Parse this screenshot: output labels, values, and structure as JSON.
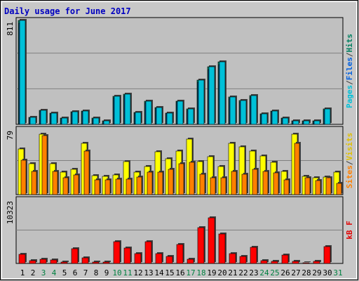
{
  "title": "Daily usage for June 2017",
  "legend": {
    "panel1": [
      {
        "text": "Pages",
        "color": "#00c0d8"
      },
      {
        "text": "/",
        "color": "#404040"
      },
      {
        "text": "Files",
        "color": "#0060e0"
      },
      {
        "text": "/",
        "color": "#404040"
      },
      {
        "text": "Hits",
        "color": "#008060"
      }
    ],
    "panel2": [
      {
        "text": "Sites",
        "color": "#ff8000"
      },
      {
        "text": "/",
        "color": "#404040"
      },
      {
        "text": "Visits",
        "color": "#e0c000"
      }
    ],
    "panel3": [
      {
        "text": "kB F",
        "color": "#e00000"
      }
    ]
  },
  "colors": {
    "title": "#0000c0",
    "frame_bg": "#c8c8c8",
    "plot_bg": "#c0c0c0",
    "grid": "#808080",
    "hits": "#008060",
    "files": "#0060e0",
    "pages": "#00c0d8",
    "visits": "#ffff00",
    "sites": "#ff8000",
    "kb": "#ff0000",
    "day_normal": "#000000",
    "day_weekend": "#008040"
  },
  "chart_data": [
    {
      "type": "bar",
      "title": "Daily usage for June 2017",
      "ylabel_max": "811",
      "ylim": [
        0,
        811
      ],
      "categories": [
        "1",
        "2",
        "3",
        "4",
        "5",
        "6",
        "7",
        "8",
        "9",
        "10",
        "11",
        "12",
        "13",
        "14",
        "15",
        "16",
        "17",
        "18",
        "19",
        "20",
        "21",
        "22",
        "23",
        "24",
        "25",
        "26",
        "27",
        "28",
        "29",
        "30",
        "31"
      ],
      "series": [
        {
          "name": "Hits",
          "values": [
            811,
            54,
            110,
            88,
            51,
            101,
            106,
            48,
            26,
            220,
            235,
            95,
            180,
            130,
            90,
            182,
            118,
            346,
            448,
            485,
            215,
            185,
            225,
            80,
            105,
            50,
            30,
            25,
            25,
            118,
            0
          ]
        },
        {
          "name": "Files",
          "values": [
            790,
            48,
            104,
            84,
            46,
            95,
            98,
            40,
            22,
            210,
            222,
            90,
            172,
            124,
            86,
            176,
            112,
            330,
            430,
            466,
            205,
            178,
            216,
            74,
            100,
            46,
            26,
            22,
            22,
            110,
            0
          ]
        },
        {
          "name": "Pages",
          "values": [
            811,
            54,
            110,
            88,
            51,
            101,
            106,
            48,
            26,
            220,
            235,
            95,
            180,
            130,
            90,
            182,
            118,
            346,
            448,
            485,
            215,
            185,
            225,
            80,
            105,
            50,
            30,
            25,
            25,
            118,
            0
          ]
        }
      ]
    },
    {
      "type": "bar",
      "ylabel_max": "79",
      "ylim": [
        0,
        79
      ],
      "categories": [
        "1",
        "2",
        "3",
        "4",
        "5",
        "6",
        "7",
        "8",
        "9",
        "10",
        "11",
        "12",
        "13",
        "14",
        "15",
        "16",
        "17",
        "18",
        "19",
        "20",
        "21",
        "22",
        "23",
        "24",
        "25",
        "26",
        "27",
        "28",
        "29",
        "30",
        "31"
      ],
      "series": [
        {
          "name": "Visits",
          "values": [
            55,
            37,
            73,
            37,
            27,
            31,
            62,
            23,
            22,
            24,
            40,
            27,
            34,
            52,
            43,
            53,
            67,
            40,
            46,
            34,
            62,
            58,
            53,
            47,
            39,
            28,
            73,
            22,
            20,
            21,
            27
          ]
        },
        {
          "name": "Sites",
          "values": [
            42,
            28,
            71,
            28,
            20,
            24,
            53,
            18,
            18,
            19,
            19,
            21,
            27,
            27,
            31,
            37,
            39,
            25,
            20,
            20,
            28,
            25,
            31,
            28,
            26,
            18,
            62,
            20,
            17,
            20,
            14
          ]
        }
      ]
    },
    {
      "type": "bar",
      "ylabel_max": "10323",
      "ylim": [
        0,
        10323
      ],
      "categories": [
        "1",
        "2",
        "3",
        "4",
        "5",
        "6",
        "7",
        "8",
        "9",
        "10",
        "11",
        "12",
        "13",
        "14",
        "15",
        "16",
        "17",
        "18",
        "19",
        "20",
        "21",
        "22",
        "23",
        "24",
        "25",
        "26",
        "27",
        "28",
        "29",
        "30",
        "31"
      ],
      "series": [
        {
          "name": "kB F",
          "values": [
            1480,
            430,
            680,
            600,
            200,
            2350,
            950,
            270,
            200,
            3530,
            2450,
            1570,
            3460,
            1620,
            1140,
            3110,
            700,
            5750,
            7400,
            4770,
            1630,
            1160,
            2560,
            490,
            290,
            1340,
            370,
            150,
            360,
            2720,
            0
          ]
        }
      ]
    }
  ],
  "day_labels": [
    {
      "text": "1",
      "weekend": false
    },
    {
      "text": "2",
      "weekend": false
    },
    {
      "text": "3",
      "weekend": true
    },
    {
      "text": "4",
      "weekend": true
    },
    {
      "text": "5",
      "weekend": false
    },
    {
      "text": "6",
      "weekend": false
    },
    {
      "text": "7",
      "weekend": false
    },
    {
      "text": "8",
      "weekend": false
    },
    {
      "text": "9",
      "weekend": false
    },
    {
      "text": "10",
      "weekend": true
    },
    {
      "text": "11",
      "weekend": true
    },
    {
      "text": "12",
      "weekend": false
    },
    {
      "text": "13",
      "weekend": false
    },
    {
      "text": "14",
      "weekend": false
    },
    {
      "text": "15",
      "weekend": false
    },
    {
      "text": "16",
      "weekend": false
    },
    {
      "text": "17",
      "weekend": true
    },
    {
      "text": "18",
      "weekend": true
    },
    {
      "text": "19",
      "weekend": false
    },
    {
      "text": "20",
      "weekend": false
    },
    {
      "text": "21",
      "weekend": false
    },
    {
      "text": "22",
      "weekend": false
    },
    {
      "text": "23",
      "weekend": false
    },
    {
      "text": "24",
      "weekend": true
    },
    {
      "text": "25",
      "weekend": true
    },
    {
      "text": "26",
      "weekend": false
    },
    {
      "text": "27",
      "weekend": false
    },
    {
      "text": "28",
      "weekend": false
    },
    {
      "text": "29",
      "weekend": false
    },
    {
      "text": "30",
      "weekend": false
    },
    {
      "text": "31",
      "weekend": true
    }
  ]
}
